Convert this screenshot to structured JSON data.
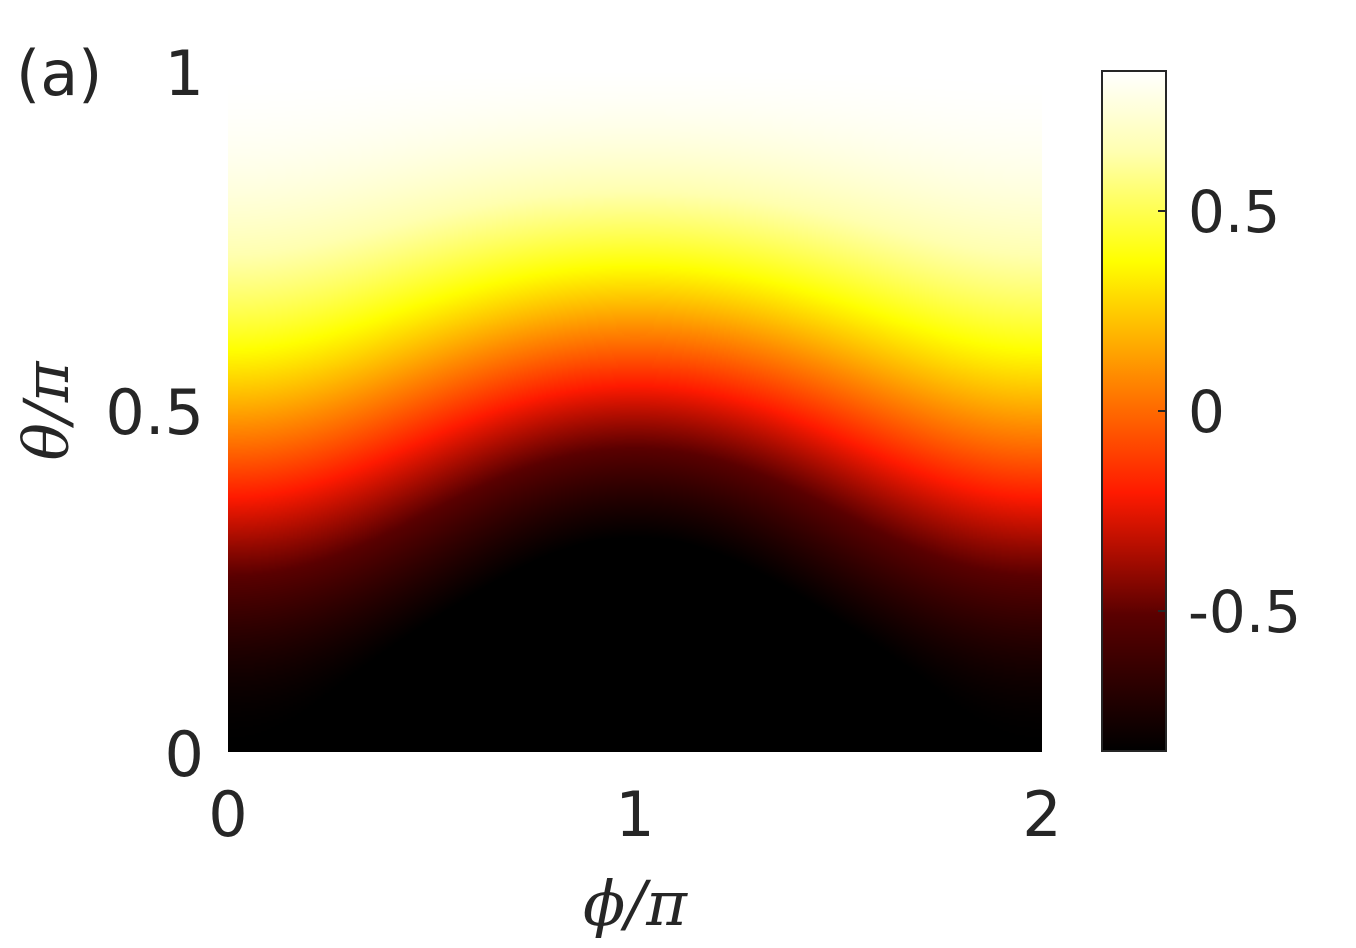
{
  "panel_label": "(a)",
  "chart_data": {
    "type": "heatmap",
    "xlabel": "ϕ/π",
    "ylabel": "θ/π",
    "xlim": [
      0,
      2
    ],
    "ylim": [
      0,
      1
    ],
    "xticks": [
      "0",
      "1",
      "2"
    ],
    "yticks": [
      "0",
      "0.5",
      "1"
    ],
    "colorbar": {
      "colormap": "hot",
      "range": [
        -0.85,
        0.85
      ],
      "ticks": [
        {
          "value": 0.5,
          "label": "0.5"
        },
        {
          "value": 0.0,
          "label": "0"
        },
        {
          "value": -0.5,
          "label": "-0.5"
        }
      ]
    },
    "description_values": {
      "min_location": {
        "phi_over_pi": 1.0,
        "theta_over_pi": 0.1,
        "value": -0.85
      },
      "max_region": "theta/pi near 1 (top edge), value about 0.85"
    },
    "grid": false
  }
}
